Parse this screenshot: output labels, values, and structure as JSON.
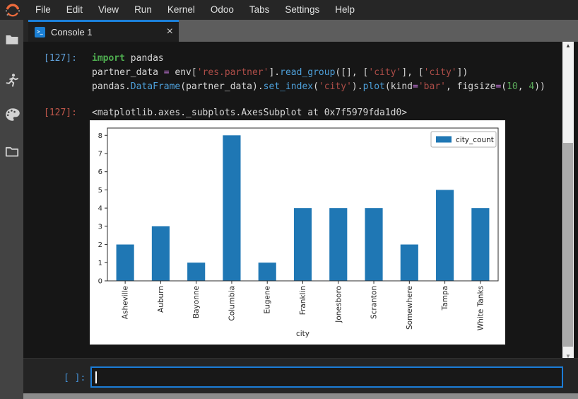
{
  "menubar": {
    "items": [
      "File",
      "Edit",
      "View",
      "Run",
      "Kernel",
      "Odoo",
      "Tabs",
      "Settings",
      "Help"
    ]
  },
  "sidebar": {
    "icons": [
      "file-browser-icon",
      "running-sessions-icon",
      "command-palette-icon",
      "open-tabs-icon"
    ]
  },
  "tabbar": {
    "tab": {
      "title": "Console 1",
      "icon_glyph": ">_",
      "close_glyph": "×",
      "active": true
    }
  },
  "console": {
    "input_cell": {
      "prompt": "[127]:",
      "code_lines": [
        [
          [
            "kw",
            "import"
          ],
          [
            "plain",
            " pandas"
          ]
        ],
        [
          [
            "plain",
            "partner_data "
          ],
          [
            "op",
            "="
          ],
          [
            "plain",
            " env["
          ],
          [
            "str",
            "'res.partner'"
          ],
          [
            "plain",
            "]."
          ],
          [
            "fn",
            "read_group"
          ],
          [
            "plain",
            "([], ["
          ],
          [
            "str",
            "'city'"
          ],
          [
            "plain",
            "], ["
          ],
          [
            "str",
            "'city'"
          ],
          [
            "plain",
            "])"
          ]
        ],
        [
          [
            "plain",
            "pandas."
          ],
          [
            "fn",
            "DataFrame"
          ],
          [
            "plain",
            "(partner_data)."
          ],
          [
            "fn",
            "set_index"
          ],
          [
            "plain",
            "("
          ],
          [
            "str",
            "'city'"
          ],
          [
            "plain",
            ")."
          ],
          [
            "fn",
            "plot"
          ],
          [
            "plain",
            "(kind"
          ],
          [
            "op",
            "="
          ],
          [
            "str",
            "'bar'"
          ],
          [
            "plain",
            ", figsize"
          ],
          [
            "op",
            "="
          ],
          [
            "plain",
            "("
          ],
          [
            "num",
            "10"
          ],
          [
            "plain",
            ", "
          ],
          [
            "num",
            "4"
          ],
          [
            "plain",
            "))"
          ]
        ]
      ]
    },
    "output_cell": {
      "prompt": "[127]:",
      "text": "<matplotlib.axes._subplots.AxesSubplot at 0x7f5979fda1d0>"
    },
    "next_input": {
      "prompt": "[ ]:",
      "value": ""
    }
  },
  "chart_data": {
    "type": "bar",
    "categories": [
      "Asheville",
      "Auburn",
      "Bayonne",
      "Columbia",
      "Eugene",
      "Franklin",
      "Jonesboro",
      "Scranton",
      "Somewhere",
      "Tampa",
      "White Tanks"
    ],
    "values": [
      2,
      3,
      1,
      8,
      1,
      4,
      4,
      4,
      2,
      5,
      4
    ],
    "series": [
      {
        "name": "city_count",
        "color": "#1f77b4"
      }
    ],
    "title": "",
    "xlabel": "city",
    "ylabel": "",
    "ylim": [
      0,
      8.4
    ],
    "yticks": [
      0,
      1,
      2,
      3,
      4,
      5,
      6,
      7,
      8
    ],
    "grid": false,
    "legend": {
      "label": "city_count",
      "position": "upper-right"
    }
  },
  "scrollbar": {
    "up_glyph": "▲",
    "down_glyph": "▼"
  },
  "colors": {
    "accent_blue": "#1c80d9",
    "bar_blue": "#1f77b4",
    "menubar_bg": "#262626",
    "tabbar_bg": "#5d5d5d",
    "sidebar_bg": "#434343",
    "console_bg": "#161616",
    "in_prompt": "#5f9ed6",
    "out_prompt": "#c2584b",
    "logo_orange": "#ea6a3c"
  }
}
